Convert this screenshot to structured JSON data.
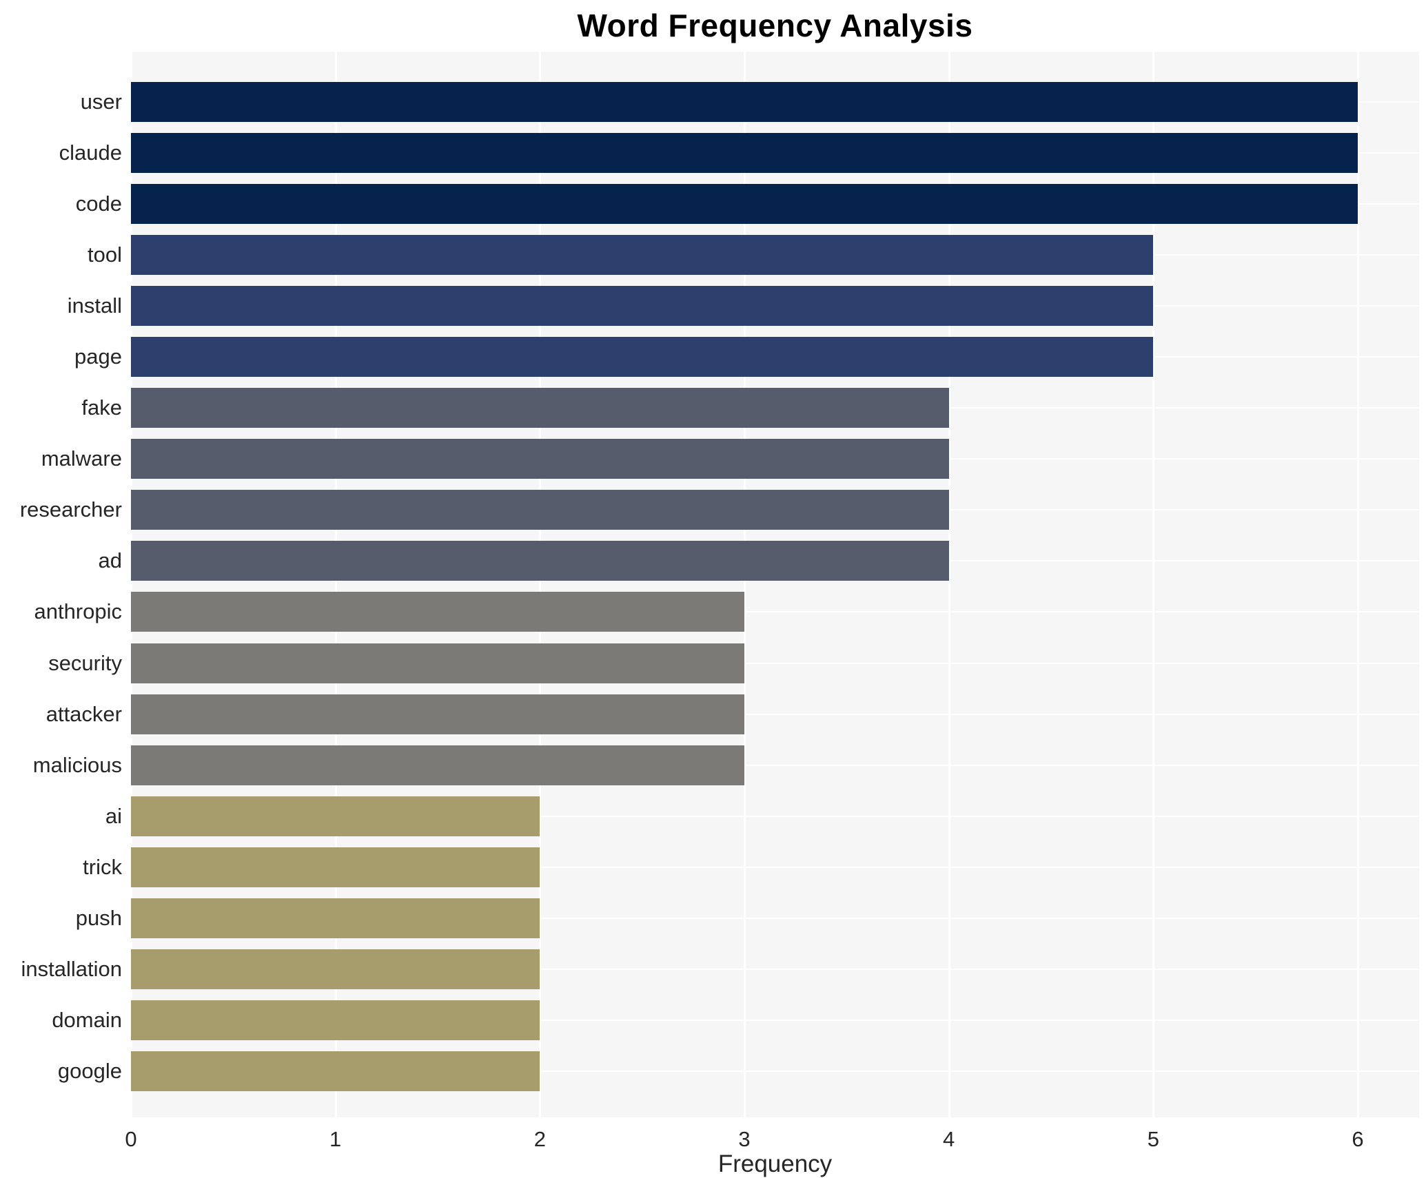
{
  "chart_data": {
    "type": "bar",
    "orientation": "horizontal",
    "title": "Word Frequency Analysis",
    "xlabel": "Frequency",
    "ylabel": "",
    "categories": [
      "user",
      "claude",
      "code",
      "tool",
      "install",
      "page",
      "fake",
      "malware",
      "researcher",
      "ad",
      "anthropic",
      "security",
      "attacker",
      "malicious",
      "ai",
      "trick",
      "push",
      "installation",
      "domain",
      "google"
    ],
    "values": [
      6,
      6,
      6,
      5,
      5,
      5,
      4,
      4,
      4,
      4,
      3,
      3,
      3,
      3,
      2,
      2,
      2,
      2,
      2,
      2
    ],
    "xlim": [
      0,
      6.3
    ],
    "xticks": [
      0,
      1,
      2,
      3,
      4,
      5,
      6
    ],
    "grid": "white vertical gridlines at integer ticks and white horizontal gridlines at category centers, on light gray panel",
    "legend_position": "none",
    "bar_color_by_value": {
      "6": "#06234e",
      "5": "#2d3f6c",
      "4": "#565c6b",
      "3": "#7b7a76",
      "2": "#a69c6c"
    }
  },
  "style": {
    "page_background": "#ffffff",
    "panel_background": "#f6f6f6",
    "grid_color": "#ffffff",
    "tick_text_color": "#262626",
    "title_color": "#000000"
  }
}
